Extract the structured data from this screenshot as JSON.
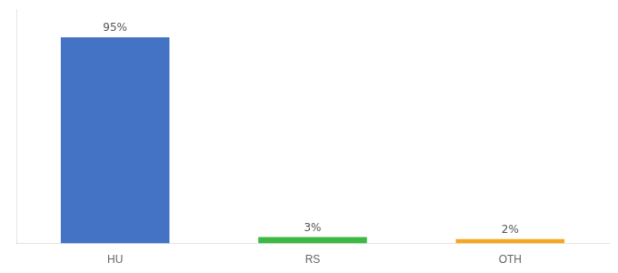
{
  "chart_data": {
    "type": "bar",
    "categories": [
      "HU",
      "RS",
      "OTH"
    ],
    "values": [
      95,
      3,
      2
    ],
    "value_labels": [
      "95%",
      "3%",
      "2%"
    ],
    "colors": [
      "#4472c4",
      "#3cb843",
      "#f5a623"
    ],
    "ylim": [
      0,
      108
    ],
    "grid": false,
    "data_labels": true,
    "tick_labels": "x"
  }
}
